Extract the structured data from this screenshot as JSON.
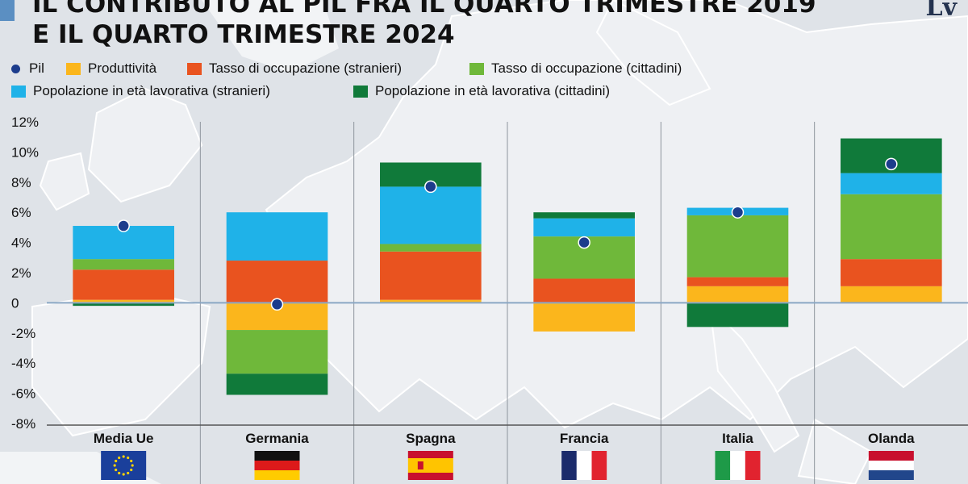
{
  "title": {
    "line1": "IL CONTRIBUTO AL PIL FRA IL QUARTO TRIMESTRE 2019",
    "line2": "E IL QUARTO TRIMESTRE 2024"
  },
  "logo": "Lv",
  "colors": {
    "pil": "#1c3c8c",
    "produttivita": "#fbb61c",
    "occ_stranieri": "#e9531f",
    "occ_cittadini": "#6fb83a",
    "pop_stranieri": "#1fb2e8",
    "pop_cittadini": "#107a3a"
  },
  "chart_data": {
    "type": "bar",
    "stacked": true,
    "title": "IL CONTRIBUTO AL PIL FRA IL QUARTO TRIMESTRE 2019 E IL QUARTO TRIMESTRE 2024",
    "categories": [
      "Media Ue",
      "Germania",
      "Spagna",
      "Francia",
      "Italia",
      "Olanda"
    ],
    "ylim": [
      -8,
      12
    ],
    "yticks": [
      {
        "value": 12,
        "label": "12%"
      },
      {
        "value": 10,
        "label": "10%"
      },
      {
        "value": 8,
        "label": "8%"
      },
      {
        "value": 6,
        "label": "6%"
      },
      {
        "value": 4,
        "label": "4%"
      },
      {
        "value": 2,
        "label": "2%"
      },
      {
        "value": 0,
        "label": "0"
      },
      {
        "value": -2,
        "label": "-2%"
      },
      {
        "value": -4,
        "label": "-4%"
      },
      {
        "value": -6,
        "label": "-6%"
      },
      {
        "value": -8,
        "label": "-8%"
      }
    ],
    "legend_position": "top",
    "grid": "vertical separators",
    "series": [
      {
        "key": "produttivita",
        "name": "Produttività",
        "values": [
          0.2,
          -1.8,
          0.2,
          -1.9,
          1.1,
          1.1
        ]
      },
      {
        "key": "occ_stranieri",
        "name": "Tasso di occupazione (stranieri)",
        "values": [
          2.0,
          2.8,
          3.2,
          1.6,
          0.6,
          1.8
        ]
      },
      {
        "key": "occ_cittadini",
        "name": "Tasso di occupazione (cittadini)",
        "values": [
          0.7,
          -2.9,
          0.5,
          2.8,
          4.1,
          4.3
        ]
      },
      {
        "key": "pop_stranieri",
        "name": "Popolazione in età lavorativa (stranieri)",
        "values": [
          2.2,
          3.2,
          3.8,
          1.2,
          0.5,
          1.4
        ]
      },
      {
        "key": "pop_cittadini",
        "name": "Popolazione in età lavorativa (cittadini)",
        "values": [
          -0.2,
          -1.4,
          1.6,
          0.4,
          -1.6,
          2.3
        ]
      }
    ],
    "pil": {
      "name": "Pil",
      "values": [
        5.1,
        -0.1,
        7.7,
        4.0,
        6.0,
        9.2
      ]
    }
  },
  "countries": [
    {
      "name": "Media Ue",
      "flag": "eu-flag"
    },
    {
      "name": "Germania",
      "flag": "germany-flag"
    },
    {
      "name": "Spagna",
      "flag": "spain-flag"
    },
    {
      "name": "Francia",
      "flag": "france-flag"
    },
    {
      "name": "Italia",
      "flag": "italy-flag"
    },
    {
      "name": "Olanda",
      "flag": "netherlands-flag"
    }
  ]
}
